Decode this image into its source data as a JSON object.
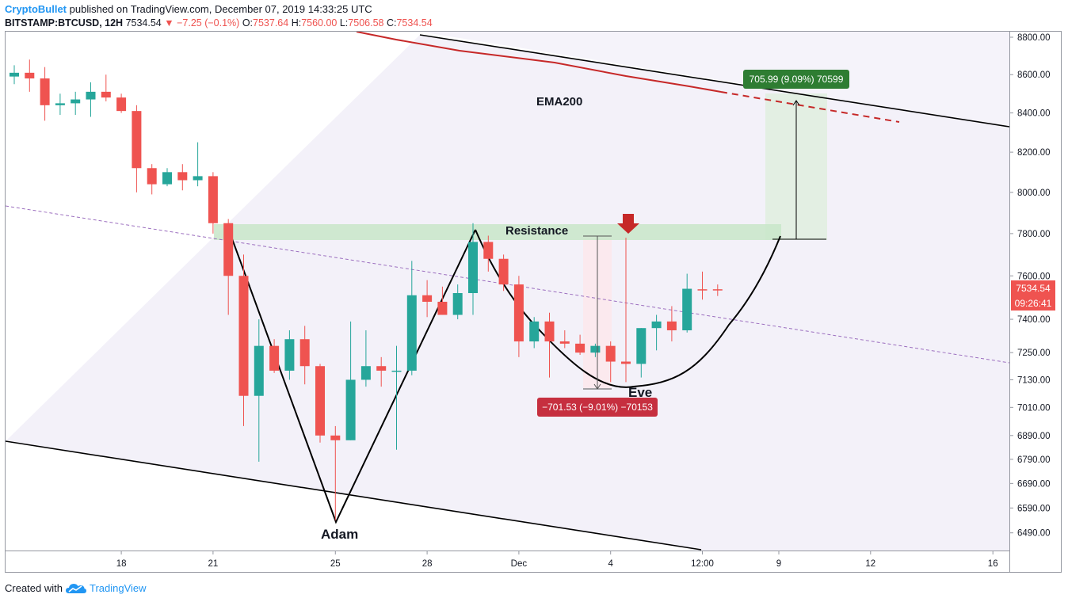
{
  "header": {
    "author": "CryptoBullet",
    "published": "published on TradingView.com, December 07, 2019 14:33:25 UTC",
    "symbol": "BITSTAMP:BTCUSD, 12H",
    "last": "7534.54",
    "change": "−7.25 (−0.1%)",
    "o_label": "O:",
    "o_value": "7537.64",
    "h_label": "H:",
    "h_value": "7560.00",
    "l_label": "L:",
    "l_value": "7506.58",
    "c_label": "C:",
    "c_value": "7534.54"
  },
  "footer": {
    "created_with": "Created with",
    "brand": "TradingView",
    "logo_icon": "tradingview-cloud-icon"
  },
  "colors": {
    "up": "#26a69a",
    "down": "#ef5350",
    "ema": "#c62828",
    "channel": "#000000",
    "midline": "#9c6fbf",
    "resistance_zone": "#c8e6c9",
    "price_label": "#ef5350"
  },
  "chart_data": {
    "type": "candlestick",
    "interval": "12H",
    "x_ticks": [
      "18",
      "21",
      "25",
      "28",
      "Dec",
      "4",
      "12:00",
      "9",
      "12",
      "16"
    ],
    "y_ticks": [
      "8800.00",
      "8600.00",
      "8400.00",
      "8200.00",
      "8000.00",
      "7800.00",
      "7600.00",
      "7400.00",
      "7250.00",
      "7130.00",
      "7010.00",
      "6890.00",
      "6790.00",
      "6690.00",
      "6590.00",
      "6490.00"
    ],
    "y_tick_values": [
      8800,
      8600,
      8400,
      8200,
      8000,
      7800,
      7600,
      7400,
      7250,
      7130,
      7010,
      6890,
      6790,
      6690,
      6590,
      6490
    ],
    "y_scale": "log",
    "ylim": [
      6420,
      8830
    ],
    "current_price_label": "7534.54",
    "countdown_label": "09:26:41",
    "candles": [
      {
        "o": 8590,
        "h": 8650,
        "l": 8550,
        "c": 8610
      },
      {
        "o": 8610,
        "h": 8680,
        "l": 8510,
        "c": 8580
      },
      {
        "o": 8580,
        "h": 8640,
        "l": 8360,
        "c": 8440
      },
      {
        "o": 8440,
        "h": 8500,
        "l": 8390,
        "c": 8450
      },
      {
        "o": 8450,
        "h": 8510,
        "l": 8390,
        "c": 8470
      },
      {
        "o": 8470,
        "h": 8560,
        "l": 8380,
        "c": 8510
      },
      {
        "o": 8510,
        "h": 8600,
        "l": 8460,
        "c": 8480
      },
      {
        "o": 8480,
        "h": 8500,
        "l": 8400,
        "c": 8410
      },
      {
        "o": 8410,
        "h": 8440,
        "l": 8000,
        "c": 8120
      },
      {
        "o": 8120,
        "h": 8140,
        "l": 7990,
        "c": 8040
      },
      {
        "o": 8040,
        "h": 8120,
        "l": 8030,
        "c": 8100
      },
      {
        "o": 8100,
        "h": 8140,
        "l": 8010,
        "c": 8060
      },
      {
        "o": 8060,
        "h": 8250,
        "l": 8030,
        "c": 8080
      },
      {
        "o": 8080,
        "h": 8100,
        "l": 7800,
        "c": 7850
      },
      {
        "o": 7850,
        "h": 7870,
        "l": 7420,
        "c": 7600
      },
      {
        "o": 7600,
        "h": 7700,
        "l": 6930,
        "c": 7060
      },
      {
        "o": 7060,
        "h": 7400,
        "l": 6780,
        "c": 7280
      },
      {
        "o": 7280,
        "h": 7310,
        "l": 7160,
        "c": 7170
      },
      {
        "o": 7170,
        "h": 7350,
        "l": 7130,
        "c": 7310
      },
      {
        "o": 7310,
        "h": 7370,
        "l": 7110,
        "c": 7190
      },
      {
        "o": 7190,
        "h": 7200,
        "l": 6860,
        "c": 6890
      },
      {
        "o": 6890,
        "h": 6930,
        "l": 6540,
        "c": 6870
      },
      {
        "o": 6870,
        "h": 7390,
        "l": 6870,
        "c": 7130
      },
      {
        "o": 7130,
        "h": 7350,
        "l": 7100,
        "c": 7190
      },
      {
        "o": 7190,
        "h": 7230,
        "l": 7100,
        "c": 7170
      },
      {
        "o": 7170,
        "h": 7280,
        "l": 6830,
        "c": 7170
      },
      {
        "o": 7170,
        "h": 7670,
        "l": 7150,
        "c": 7510
      },
      {
        "o": 7510,
        "h": 7580,
        "l": 7410,
        "c": 7480
      },
      {
        "o": 7480,
        "h": 7550,
        "l": 7420,
        "c": 7420
      },
      {
        "o": 7420,
        "h": 7560,
        "l": 7400,
        "c": 7520
      },
      {
        "o": 7520,
        "h": 7850,
        "l": 7420,
        "c": 7760
      },
      {
        "o": 7760,
        "h": 7790,
        "l": 7620,
        "c": 7680
      },
      {
        "o": 7680,
        "h": 7700,
        "l": 7530,
        "c": 7560
      },
      {
        "o": 7560,
        "h": 7600,
        "l": 7230,
        "c": 7300
      },
      {
        "o": 7300,
        "h": 7410,
        "l": 7270,
        "c": 7390
      },
      {
        "o": 7390,
        "h": 7430,
        "l": 7140,
        "c": 7300
      },
      {
        "o": 7300,
        "h": 7350,
        "l": 7270,
        "c": 7290
      },
      {
        "o": 7290,
        "h": 7330,
        "l": 7240,
        "c": 7250
      },
      {
        "o": 7250,
        "h": 7290,
        "l": 7230,
        "c": 7280
      },
      {
        "o": 7280,
        "h": 7300,
        "l": 7120,
        "c": 7210
      },
      {
        "o": 7210,
        "h": 7780,
        "l": 7120,
        "c": 7200
      },
      {
        "o": 7200,
        "h": 7360,
        "l": 7140,
        "c": 7360
      },
      {
        "o": 7360,
        "h": 7420,
        "l": 7260,
        "c": 7390
      },
      {
        "o": 7390,
        "h": 7460,
        "l": 7300,
        "c": 7350
      },
      {
        "o": 7350,
        "h": 7610,
        "l": 7340,
        "c": 7540
      },
      {
        "o": 7537.64,
        "h": 7620,
        "l": 7490,
        "c": 7534.54
      },
      {
        "o": 7537.64,
        "h": 7560,
        "l": 7506.58,
        "c": 7534.54
      }
    ],
    "annotations": {
      "ema_label": "EMA200",
      "resistance_label": "Resistance",
      "left_low_label": "Adam",
      "right_low_label": "Eve",
      "down_measure_label": "−701.53 (−9.01%) −70153",
      "up_measure_label": "705.99 (9.09%) 70599"
    }
  }
}
